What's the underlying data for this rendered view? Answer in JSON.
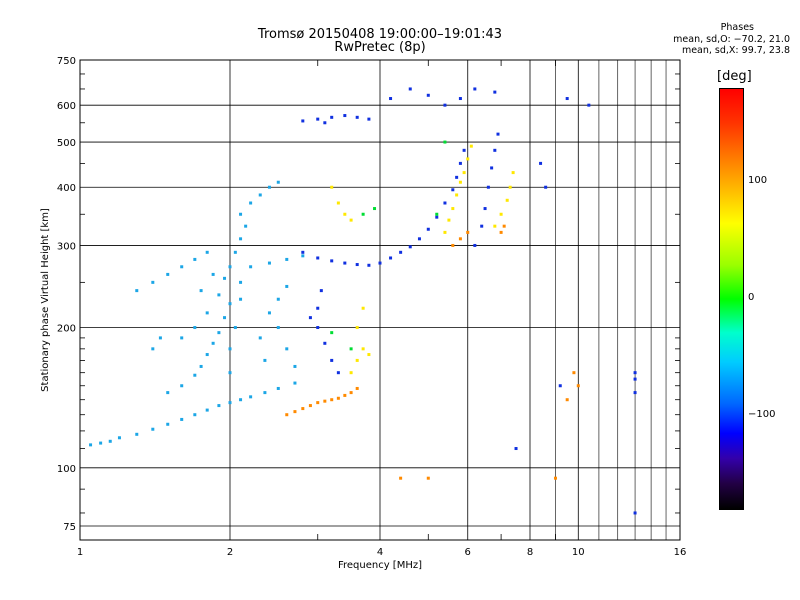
{
  "header": {
    "title": "Tromsø 20150408 19:00:00–19:01:43",
    "subtitle": "RwPretec (8p)"
  },
  "phase_stats": {
    "label": "Phases",
    "line_o": "mean, sd,O: −70.2, 21.0",
    "line_x": "mean, sd,X:  99.7, 23.8"
  },
  "colorbar": {
    "unit": "[deg]",
    "ticks": [
      {
        "label": "100",
        "value": 100
      },
      {
        "label": "0",
        "value": 0
      },
      {
        "label": "−100",
        "value": -100
      }
    ],
    "range": [
      -180,
      180
    ]
  },
  "chart_data": {
    "type": "scatter",
    "xlabel": "Frequency [MHz]",
    "ylabel": "Stationary phase Virtual Height [km]",
    "x_scale": "log",
    "y_scale": "log",
    "xlim": [
      1,
      16
    ],
    "ylim": [
      70,
      750
    ],
    "x_ticks": [
      {
        "label": "1",
        "value": 1
      },
      {
        "label": "2",
        "value": 2
      },
      {
        "label": "4",
        "value": 4
      },
      {
        "label": "6",
        "value": 6
      },
      {
        "label": "8",
        "value": 8
      },
      {
        "label": "10",
        "value": 10
      },
      {
        "label": "16",
        "value": 16
      }
    ],
    "y_ticks": [
      {
        "label": "75",
        "value": 75
      },
      {
        "label": "100",
        "value": 100
      },
      {
        "label": "200",
        "value": 200
      },
      {
        "label": "300",
        "value": 300
      },
      {
        "label": "400",
        "value": 400
      },
      {
        "label": "500",
        "value": 500
      },
      {
        "label": "600",
        "value": 600
      },
      {
        "label": "750",
        "value": 750
      }
    ],
    "grid": true,
    "series": [
      {
        "color": "#1ca6e6",
        "points": [
          [
            1.05,
            112
          ],
          [
            1.1,
            113
          ],
          [
            1.15,
            114
          ],
          [
            1.2,
            116
          ],
          [
            1.3,
            118
          ],
          [
            1.4,
            121
          ],
          [
            1.5,
            124
          ],
          [
            1.6,
            127
          ],
          [
            1.7,
            130
          ],
          [
            1.8,
            133
          ],
          [
            1.9,
            136
          ],
          [
            2.0,
            138
          ],
          [
            2.1,
            140
          ],
          [
            2.2,
            142
          ],
          [
            2.35,
            145
          ],
          [
            2.5,
            148
          ],
          [
            2.7,
            152
          ],
          [
            1.5,
            145
          ],
          [
            1.6,
            150
          ],
          [
            1.7,
            158
          ],
          [
            1.75,
            165
          ],
          [
            1.8,
            175
          ],
          [
            1.85,
            185
          ],
          [
            1.9,
            195
          ],
          [
            1.95,
            210
          ],
          [
            2.0,
            225
          ],
          [
            1.6,
            190
          ],
          [
            1.7,
            200
          ],
          [
            1.8,
            215
          ],
          [
            1.9,
            235
          ],
          [
            1.95,
            255
          ],
          [
            2.0,
            270
          ],
          [
            2.05,
            290
          ],
          [
            2.1,
            310
          ],
          [
            2.15,
            330
          ],
          [
            2.1,
            350
          ],
          [
            2.2,
            370
          ],
          [
            2.3,
            385
          ],
          [
            2.4,
            400
          ],
          [
            2.5,
            410
          ],
          [
            2.2,
            270
          ],
          [
            2.4,
            275
          ],
          [
            2.6,
            280
          ],
          [
            2.8,
            285
          ],
          [
            1.4,
            180
          ],
          [
            1.45,
            190
          ],
          [
            1.3,
            240
          ],
          [
            1.4,
            250
          ],
          [
            1.5,
            260
          ],
          [
            1.6,
            270
          ],
          [
            1.7,
            280
          ],
          [
            1.8,
            290
          ],
          [
            2.0,
            160
          ],
          [
            2.0,
            180
          ],
          [
            2.05,
            200
          ],
          [
            2.1,
            230
          ],
          [
            2.1,
            250
          ],
          [
            2.5,
            200
          ],
          [
            2.6,
            180
          ],
          [
            2.7,
            165
          ],
          [
            2.4,
            215
          ],
          [
            2.5,
            230
          ],
          [
            2.6,
            245
          ],
          [
            2.3,
            190
          ],
          [
            2.35,
            170
          ],
          [
            1.75,
            240
          ],
          [
            1.85,
            260
          ]
        ]
      },
      {
        "color": "#1030e0",
        "points": [
          [
            2.8,
            290
          ],
          [
            3.0,
            282
          ],
          [
            3.2,
            278
          ],
          [
            3.4,
            275
          ],
          [
            3.6,
            273
          ],
          [
            3.8,
            272
          ],
          [
            4.0,
            275
          ],
          [
            4.2,
            282
          ],
          [
            4.4,
            290
          ],
          [
            4.6,
            298
          ],
          [
            4.8,
            310
          ],
          [
            5.0,
            325
          ],
          [
            5.2,
            345
          ],
          [
            5.4,
            370
          ],
          [
            5.6,
            395
          ],
          [
            5.7,
            420
          ],
          [
            5.8,
            450
          ],
          [
            5.9,
            480
          ],
          [
            6.2,
            300
          ],
          [
            6.4,
            330
          ],
          [
            6.5,
            360
          ],
          [
            6.6,
            400
          ],
          [
            6.7,
            440
          ],
          [
            6.8,
            480
          ],
          [
            6.9,
            520
          ],
          [
            3.0,
            560
          ],
          [
            3.2,
            565
          ],
          [
            3.4,
            570
          ],
          [
            3.6,
            565
          ],
          [
            3.8,
            560
          ],
          [
            2.8,
            555
          ],
          [
            3.1,
            550
          ],
          [
            3.0,
            200
          ],
          [
            3.1,
            185
          ],
          [
            3.2,
            170
          ],
          [
            3.3,
            160
          ],
          [
            3.0,
            220
          ],
          [
            3.05,
            240
          ],
          [
            2.9,
            210
          ],
          [
            4.2,
            620
          ],
          [
            4.6,
            650
          ],
          [
            5.0,
            630
          ],
          [
            5.4,
            600
          ],
          [
            5.8,
            620
          ],
          [
            6.2,
            650
          ],
          [
            6.8,
            640
          ],
          [
            8.4,
            450
          ],
          [
            8.6,
            400
          ],
          [
            9.5,
            620
          ],
          [
            10.5,
            600
          ],
          [
            7.5,
            110
          ],
          [
            9.2,
            150
          ],
          [
            13,
            160
          ],
          [
            13,
            155
          ],
          [
            13,
            145
          ],
          [
            13,
            80
          ]
        ]
      },
      {
        "color": "#ffe800",
        "points": [
          [
            5.4,
            320
          ],
          [
            5.5,
            340
          ],
          [
            5.6,
            360
          ],
          [
            5.7,
            385
          ],
          [
            5.8,
            410
          ],
          [
            5.9,
            430
          ],
          [
            6.0,
            460
          ],
          [
            6.1,
            490
          ],
          [
            6.8,
            330
          ],
          [
            7.0,
            350
          ],
          [
            7.2,
            375
          ],
          [
            7.3,
            400
          ],
          [
            7.4,
            430
          ],
          [
            3.5,
            160
          ],
          [
            3.6,
            170
          ],
          [
            3.7,
            180
          ],
          [
            3.8,
            175
          ],
          [
            3.6,
            200
          ],
          [
            3.7,
            220
          ],
          [
            3.2,
            400
          ],
          [
            3.3,
            370
          ],
          [
            3.4,
            350
          ],
          [
            3.5,
            340
          ]
        ]
      },
      {
        "color": "#ff8a00",
        "points": [
          [
            2.6,
            130
          ],
          [
            2.7,
            132
          ],
          [
            2.8,
            134
          ],
          [
            2.9,
            136
          ],
          [
            3.0,
            138
          ],
          [
            3.1,
            139
          ],
          [
            3.2,
            140
          ],
          [
            3.3,
            141
          ],
          [
            3.4,
            143
          ],
          [
            3.5,
            145
          ],
          [
            3.6,
            148
          ],
          [
            5.6,
            300
          ],
          [
            5.8,
            310
          ],
          [
            6.0,
            320
          ],
          [
            7.0,
            320
          ],
          [
            7.1,
            330
          ],
          [
            4.4,
            95
          ],
          [
            5.0,
            95
          ],
          [
            9.0,
            95
          ],
          [
            9.5,
            140
          ],
          [
            10,
            150
          ],
          [
            9.8,
            160
          ]
        ]
      },
      {
        "color": "#00dd33",
        "points": [
          [
            3.7,
            350
          ],
          [
            3.9,
            360
          ],
          [
            5.2,
            350
          ],
          [
            5.4,
            500
          ],
          [
            3.2,
            195
          ],
          [
            3.5,
            180
          ]
        ]
      }
    ]
  }
}
